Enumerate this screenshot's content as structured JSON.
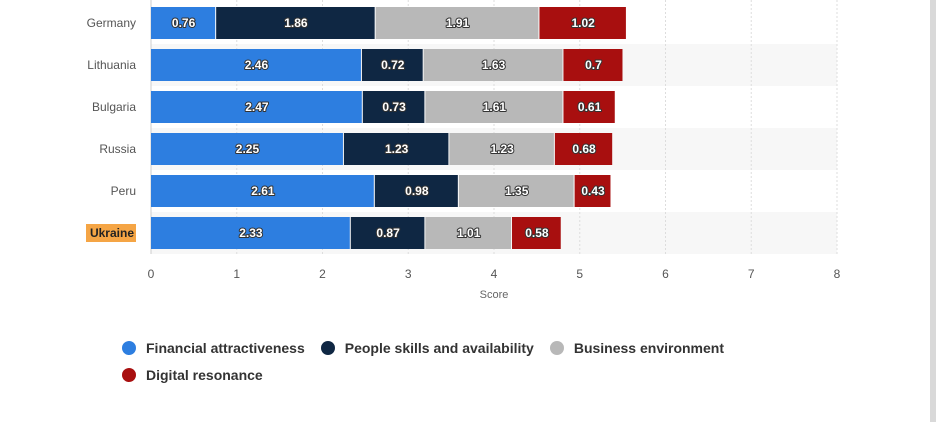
{
  "chart_data": {
    "type": "bar",
    "orientation": "horizontal",
    "stacked": true,
    "categories": [
      "Germany",
      "Lithuania",
      "Bulgaria",
      "Russia",
      "Peru",
      "Ukraine"
    ],
    "highlighted_category": "Ukraine",
    "series": [
      {
        "name": "Financial attractiveness",
        "color": "#2d7ee0",
        "values": [
          0.76,
          2.46,
          2.47,
          2.25,
          2.61,
          2.33
        ]
      },
      {
        "name": "People skills and availability",
        "color": "#0f2743",
        "values": [
          1.86,
          0.72,
          0.73,
          1.23,
          0.98,
          0.87
        ]
      },
      {
        "name": "Business environment",
        "color": "#b8b8b8",
        "values": [
          1.91,
          1.63,
          1.61,
          1.23,
          1.35,
          1.01
        ]
      },
      {
        "name": "Digital resonance",
        "color": "#a80f0f",
        "values": [
          1.02,
          0.7,
          0.61,
          0.68,
          0.43,
          0.58
        ]
      }
    ],
    "xlabel": "Score",
    "ylabel": "",
    "xlim": [
      0,
      8
    ],
    "xticks": [
      0,
      1,
      2,
      3,
      4,
      5,
      6,
      7,
      8
    ],
    "grid": "vertical dashed",
    "legend_position": "bottom"
  }
}
